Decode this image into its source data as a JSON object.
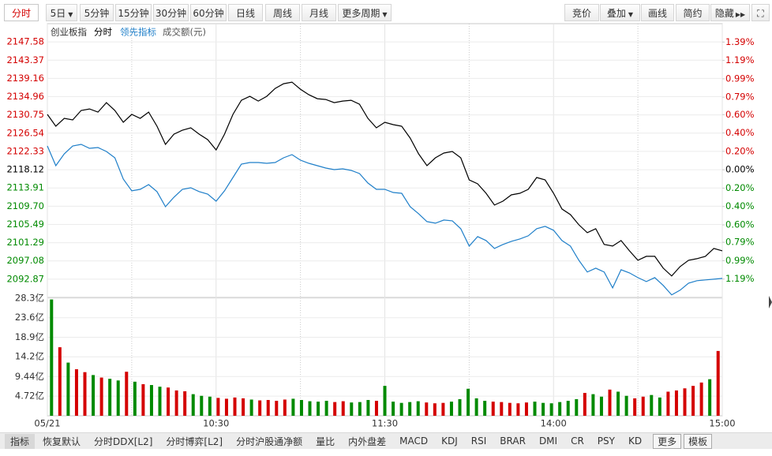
{
  "toolbar": {
    "left": [
      "分时",
      "5日",
      "5分钟",
      "15分钟",
      "30分钟",
      "60分钟",
      "日线",
      "周线",
      "月线",
      "更多周期"
    ],
    "right": [
      "竞价",
      "叠加",
      "画线",
      "简约",
      "隐藏"
    ]
  },
  "header": {
    "name": "创业板指",
    "period": "分时",
    "indicator": "领先指标",
    "volume_label": "成交额(元)"
  },
  "chart_data": [
    {
      "type": "line",
      "up_color": "#d40000",
      "down_color": "#008a00",
      "flat_color": "#000000",
      "xlim": [
        0,
        80
      ],
      "ylim": [
        2088.66,
        2151.79
      ],
      "yticks": [
        2147.58,
        2143.37,
        2139.16,
        2134.96,
        2130.75,
        2126.54,
        2122.33,
        2118.12,
        2113.91,
        {
          "value": 2109.7,
          "label": "2109.70"
        },
        2105.49,
        2101.29,
        2097.08,
        2092.87
      ],
      "y2lim": [
        -1.39,
        1.59
      ],
      "y2ticks": [
        {
          "value": 1.39,
          "label": "1.39%"
        },
        {
          "value": 1.19,
          "label": "1.19%"
        },
        {
          "value": 0.99,
          "label": "0.99%"
        },
        {
          "value": 0.79,
          "label": "0.79%"
        },
        {
          "value": 0.6,
          "label": "0.60%"
        },
        {
          "value": 0.4,
          "label": "0.40%"
        },
        {
          "value": 0.2,
          "label": "0.20%"
        },
        {
          "value": 0,
          "label": "0.00%"
        },
        {
          "value": -0.2,
          "label": "0.20%"
        },
        {
          "value": -0.4,
          "label": "0.40%"
        },
        {
          "value": -0.6,
          "label": "0.60%"
        },
        {
          "value": -0.79,
          "label": "0.79%"
        },
        {
          "value": -0.99,
          "label": "0.99%"
        },
        {
          "value": -1.19,
          "label": "1.19%"
        }
      ],
      "series": [
        {
          "name": "分时",
          "color": "#000000",
          "values": [
            2130.86,
            2128.13,
            2129.95,
            2129.59,
            2131.77,
            2132.13,
            2131.4,
            2133.58,
            2131.77,
            2129.04,
            2130.86,
            2129.95,
            2131.4,
            2128.13,
            2123.95,
            2126.31,
            2127.22,
            2127.77,
            2126.31,
            2125.04,
            2122.68,
            2126.31,
            2130.86,
            2134.13,
            2135.04,
            2133.95,
            2135.04,
            2136.86,
            2137.95,
            2138.31,
            2136.67,
            2135.4,
            2134.49,
            2134.31,
            2133.58,
            2133.95,
            2134.13,
            2133.22,
            2129.95,
            2127.77,
            2129.04,
            2128.5,
            2128.13,
            2125.41,
            2121.77,
            2119.04,
            2120.86,
            2121.95,
            2122.32,
            2120.86,
            2115.77,
            2114.86,
            2112.68,
            2109.96,
            2110.86,
            2112.32,
            2112.68,
            2113.59,
            2116.32,
            2115.77,
            2112.68,
            2109.05,
            2107.77,
            2105.41,
            2103.59,
            2104.5,
            2100.87,
            2100.5,
            2101.78,
            2099.41,
            2097.23,
            2098.14,
            2098.14,
            2095.41,
            2093.6,
            2095.78,
            2097.23,
            2097.6,
            2098.14,
            2099.96,
            2099.41
          ]
        },
        {
          "name": "领先指标",
          "color": "#1f7fc9",
          "values": [
            2123.59,
            2119.04,
            2121.77,
            2123.59,
            2123.95,
            2123.04,
            2123.22,
            2122.32,
            2120.86,
            2115.95,
            2113.23,
            2113.59,
            2114.68,
            2113.05,
            2109.59,
            2111.77,
            2113.59,
            2113.95,
            2113.05,
            2112.5,
            2110.86,
            2113.23,
            2116.32,
            2119.41,
            2119.77,
            2119.77,
            2119.59,
            2119.77,
            2120.86,
            2121.59,
            2120.32,
            2119.59,
            2119.04,
            2118.5,
            2118.13,
            2118.32,
            2117.95,
            2117.23,
            2115.04,
            2113.59,
            2113.59,
            2112.86,
            2112.68,
            2109.59,
            2107.96,
            2106.14,
            2105.78,
            2106.5,
            2106.32,
            2104.5,
            2100.5,
            2102.69,
            2101.78,
            2099.96,
            2100.87,
            2101.59,
            2102.14,
            2102.87,
            2104.5,
            2105.05,
            2104.14,
            2101.78,
            2100.5,
            2097.23,
            2094.51,
            2095.41,
            2094.51,
            2090.87,
            2095.05,
            2094.32,
            2093.23,
            2092.32,
            2093.23,
            2091.42,
            2089.24,
            2090.33,
            2091.96,
            2092.51,
            2092.69,
            2092.87,
            2093.05
          ]
        }
      ]
    },
    {
      "type": "bar",
      "xlim": [
        0,
        80
      ],
      "xticks": [
        {
          "value": 0,
          "label": "05/21"
        },
        {
          "value": 20,
          "label": "10:30"
        },
        {
          "value": 40,
          "label": "11:30"
        },
        {
          "value": 60,
          "label": "14:00"
        },
        {
          "value": 80,
          "label": "15:00"
        }
      ],
      "ylim": [
        0,
        28.3
      ],
      "yticks": [
        {
          "value": 28.3,
          "label": "28.3亿"
        },
        {
          "value": 23.6,
          "label": "23.6亿"
        },
        {
          "value": 18.9,
          "label": "18.9亿"
        },
        {
          "value": 14.2,
          "label": "14.2亿"
        },
        {
          "value": 9.44,
          "label": "9.44亿"
        },
        {
          "value": 4.72,
          "label": "4.72亿"
        }
      ],
      "values": [
        28.0,
        16.5,
        12.8,
        11.2,
        10.5,
        9.8,
        9.2,
        8.9,
        8.5,
        10.6,
        8.2,
        7.6,
        7.4,
        7.0,
        6.8,
        6.1,
        5.9,
        5.2,
        4.8,
        4.6,
        4.3,
        4.1,
        4.4,
        4.2,
        3.9,
        3.7,
        3.8,
        3.6,
        3.9,
        4.1,
        3.8,
        3.5,
        3.4,
        3.6,
        3.3,
        3.5,
        3.2,
        3.3,
        3.8,
        3.6,
        7.2,
        3.4,
        3.1,
        3.3,
        3.5,
        3.2,
        3.0,
        3.1,
        3.4,
        4.0,
        6.5,
        4.2,
        3.6,
        3.4,
        3.3,
        3.1,
        3.0,
        3.2,
        3.4,
        3.1,
        3.0,
        3.3,
        3.6,
        4.0,
        5.5,
        5.2,
        4.6,
        6.3,
        5.8,
        4.8,
        4.2,
        4.6,
        5.0,
        4.4,
        5.8,
        6.1,
        6.6,
        7.2,
        8.0,
        8.8,
        15.6
      ]
    }
  ],
  "tabs": [
    "指标",
    "恢复默认",
    "分时DDX[L2]",
    "分时博弈[L2]",
    "分时沪股通净额",
    "量比",
    "内外盘差",
    "MACD",
    "KDJ",
    "RSI",
    "BRAR",
    "DMI",
    "CR",
    "PSY",
    "KD",
    "更多",
    "模板"
  ]
}
